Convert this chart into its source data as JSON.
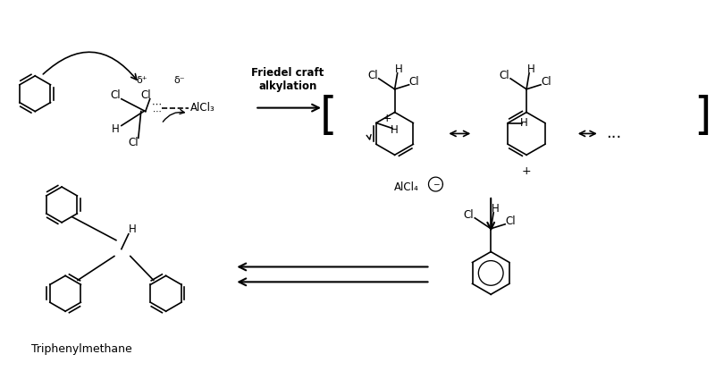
{
  "bg_color": "#ffffff",
  "text_color": "#000000",
  "friedel_craft_label": "Friedel craft\nalkylation",
  "alcl4_label": "AlCl₄",
  "triphenylmethane_label": "Triphenylmethane",
  "delta_plus": "δ⁺",
  "delta_minus": "δ⁻"
}
